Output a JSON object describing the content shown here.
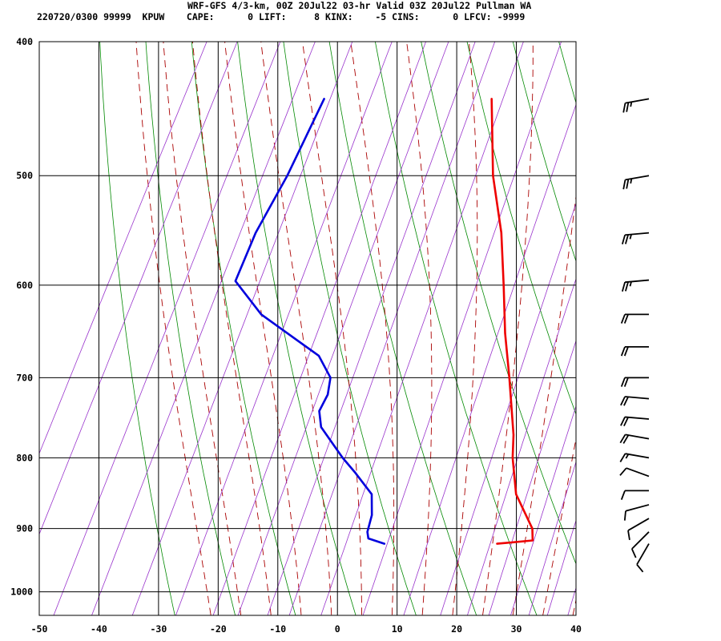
{
  "header": {
    "title_line": "WRF-GFS 4/3-km, 00Z 20Jul22 03-hr Valid 03Z 20Jul22 Pullman WA",
    "info_line": "220720/0300 99999  KPUW    CAPE:      0 LIFT:     8 KINX:    -5 CINS:      0 LFCV: -9999"
  },
  "colors": {
    "temperature": "#ee0000",
    "dewpoint": "#0000dd",
    "dry_adiabat": "#008800",
    "moist_adiabat": "#aa0000",
    "mixing_ratio": "#9933cc",
    "grid": "#000000",
    "wind_barb": "#000000"
  },
  "chart_data": {
    "type": "line",
    "chart_kind": "skew-T log-P sounding",
    "x_axis": {
      "ticks": [
        -50,
        -40,
        -30,
        -20,
        -10,
        0,
        10,
        20,
        30,
        40
      ],
      "range": [
        -50,
        40
      ]
    },
    "y_axis": {
      "scale": "log",
      "ticks": [
        400,
        500,
        600,
        700,
        800,
        900,
        1000
      ],
      "range": [
        400,
        1040
      ]
    },
    "grid": true,
    "series": [
      {
        "key": "temperature",
        "points": [
          {
            "p": 923,
            "t": 21.0
          },
          {
            "p": 918,
            "t": 26.7
          },
          {
            "p": 900,
            "t": 25.7
          },
          {
            "p": 850,
            "t": 20.2
          },
          {
            "p": 800,
            "t": 16.7
          },
          {
            "p": 770,
            "t": 15.0
          },
          {
            "p": 700,
            "t": 9.7
          },
          {
            "p": 650,
            "t": 5.4
          },
          {
            "p": 600,
            "t": 1.3
          },
          {
            "p": 550,
            "t": -3.3
          },
          {
            "p": 500,
            "t": -9.3
          },
          {
            "p": 440,
            "t": -15.7
          }
        ]
      },
      {
        "key": "dewpoint",
        "points": [
          {
            "p": 923,
            "t": 2.1
          },
          {
            "p": 915,
            "t": -1.0
          },
          {
            "p": 905,
            "t": -1.7
          },
          {
            "p": 880,
            "t": -2.3
          },
          {
            "p": 850,
            "t": -4.0
          },
          {
            "p": 820,
            "t": -8.5
          },
          {
            "p": 800,
            "t": -11.8
          },
          {
            "p": 760,
            "t": -17.9
          },
          {
            "p": 740,
            "t": -19.5
          },
          {
            "p": 720,
            "t": -19.4
          },
          {
            "p": 700,
            "t": -20.3
          },
          {
            "p": 675,
            "t": -24.0
          },
          {
            "p": 630,
            "t": -37.0
          },
          {
            "p": 596,
            "t": -44.0
          },
          {
            "p": 550,
            "t": -44.5
          },
          {
            "p": 500,
            "t": -43.8
          },
          {
            "p": 440,
            "t": -43.8
          }
        ]
      }
    ],
    "wind_barbs": [
      {
        "p": 923,
        "direction": 210,
        "speed_kt": 10
      },
      {
        "p": 905,
        "direction": 225,
        "speed_kt": 10
      },
      {
        "p": 885,
        "direction": 240,
        "speed_kt": 10
      },
      {
        "p": 865,
        "direction": 255,
        "speed_kt": 10
      },
      {
        "p": 845,
        "direction": 270,
        "speed_kt": 10
      },
      {
        "p": 825,
        "direction": 290,
        "speed_kt": 10
      },
      {
        "p": 800,
        "direction": 280,
        "speed_kt": 15
      },
      {
        "p": 775,
        "direction": 280,
        "speed_kt": 20
      },
      {
        "p": 750,
        "direction": 275,
        "speed_kt": 20
      },
      {
        "p": 725,
        "direction": 275,
        "speed_kt": 20
      },
      {
        "p": 700,
        "direction": 270,
        "speed_kt": 20
      },
      {
        "p": 665,
        "direction": 270,
        "speed_kt": 20
      },
      {
        "p": 630,
        "direction": 270,
        "speed_kt": 20
      },
      {
        "p": 595,
        "direction": 265,
        "speed_kt": 25
      },
      {
        "p": 550,
        "direction": 265,
        "speed_kt": 25
      },
      {
        "p": 500,
        "direction": 260,
        "speed_kt": 25
      },
      {
        "p": 440,
        "direction": 260,
        "speed_kt": 25
      }
    ]
  }
}
